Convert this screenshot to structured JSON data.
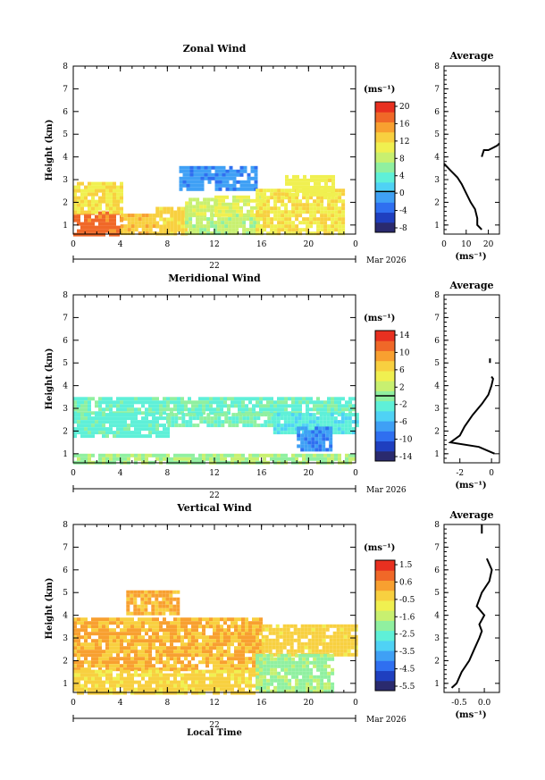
{
  "figure": {
    "xlabel": "Local Time",
    "date_day": "22",
    "date_month_year": "Mar 2026",
    "height_label": "Height (km)",
    "unit_label": "(ms⁻¹)"
  },
  "chart_data": [
    {
      "id": "zonal",
      "type": "heatmap",
      "title": "Zonal Wind",
      "xlabel": "",
      "ylabel": "Height (km)",
      "xlim": [
        0,
        24
      ],
      "ylim": [
        0.6,
        8
      ],
      "xticks": [
        "0",
        "4",
        "8",
        "12",
        "16",
        "20",
        "0"
      ],
      "yticks": [
        "1",
        "2",
        "3",
        "4",
        "5",
        "6",
        "7",
        "8"
      ],
      "colorbar": {
        "ticks": [
          "20",
          "16",
          "12",
          "8",
          "4",
          "0",
          "-4",
          "-8"
        ],
        "vmin": -10,
        "vmax": 22,
        "zero_line": 0
      },
      "regions": [
        {
          "x": [
            0,
            4
          ],
          "y": [
            0.6,
            1.6
          ],
          "value": 18
        },
        {
          "x": [
            0,
            4
          ],
          "y": [
            1.6,
            2.9
          ],
          "value": 12
        },
        {
          "x": [
            4,
            7
          ],
          "y": [
            0.6,
            1.5
          ],
          "value": 14
        },
        {
          "x": [
            7,
            9.5
          ],
          "y": [
            0.6,
            1.8
          ],
          "value": 13
        },
        {
          "x": [
            9.5,
            16
          ],
          "y": [
            0.6,
            1.5
          ],
          "value": 8
        },
        {
          "x": [
            9.5,
            12
          ],
          "y": [
            1.5,
            2.2
          ],
          "value": 9
        },
        {
          "x": [
            12,
            16
          ],
          "y": [
            1.5,
            2.3
          ],
          "value": 10
        },
        {
          "x": [
            9,
            15.5
          ],
          "y": [
            2.5,
            3.6
          ],
          "value": -2
        },
        {
          "x": [
            15.5,
            23
          ],
          "y": [
            0.6,
            2.6
          ],
          "value": 12
        },
        {
          "x": [
            18,
            22
          ],
          "y": [
            2.3,
            3.2
          ],
          "value": 11
        }
      ],
      "profile": {
        "title": "Average",
        "xlabel": "(ms⁻¹)",
        "xlim": [
          0,
          25
        ],
        "xticks": [
          "0",
          "10",
          "20"
        ],
        "x": [
          17,
          15,
          15,
          14,
          12,
          10,
          8,
          6,
          3,
          1,
          0
        ],
        "y": [
          0.8,
          1.0,
          1.3,
          1.7,
          2.0,
          2.4,
          2.8,
          3.1,
          3.4,
          3.6,
          3.7
        ],
        "x2": [
          17,
          18,
          20,
          22,
          24,
          25
        ],
        "y2": [
          4.0,
          4.3,
          4.3,
          4.4,
          4.5,
          4.6
        ]
      }
    },
    {
      "id": "meridional",
      "type": "heatmap",
      "title": "Meridional Wind",
      "xlabel": "",
      "ylabel": "Height (km)",
      "xlim": [
        0,
        24
      ],
      "ylim": [
        0.6,
        8
      ],
      "xticks": [
        "0",
        "4",
        "8",
        "12",
        "16",
        "20",
        "0"
      ],
      "yticks": [
        "1",
        "2",
        "3",
        "4",
        "5",
        "6",
        "7",
        "8"
      ],
      "colorbar": {
        "ticks": [
          "14",
          "10",
          "6",
          "2",
          "-2",
          "-6",
          "-10",
          "-14"
        ],
        "vmin": -16,
        "vmax": 16,
        "zero_line": 0
      },
      "regions": [
        {
          "x": [
            0,
            24
          ],
          "y": [
            2.8,
            3.5
          ],
          "value": -1.5
        },
        {
          "x": [
            0,
            8
          ],
          "y": [
            1.8,
            2.8
          ],
          "value": -2
        },
        {
          "x": [
            8,
            17
          ],
          "y": [
            2.2,
            2.8
          ],
          "value": -1
        },
        {
          "x": [
            17,
            24
          ],
          "y": [
            2.0,
            2.8
          ],
          "value": -3
        },
        {
          "x": [
            19,
            22
          ],
          "y": [
            1.2,
            2.2
          ],
          "value": -8
        },
        {
          "x": [
            0,
            24
          ],
          "y": [
            0.6,
            1.0
          ],
          "value": 1
        }
      ],
      "profile": {
        "title": "Average",
        "xlabel": "(ms⁻¹)",
        "xlim": [
          -3,
          0.5
        ],
        "xticks": [
          "-2",
          "0"
        ],
        "x": [
          0.2,
          -0.8,
          -2.6,
          -2.0,
          -1.7,
          -1.2,
          -0.6,
          -0.2,
          0.0,
          0.1,
          0.0
        ],
        "y": [
          1.0,
          1.3,
          1.5,
          1.8,
          2.2,
          2.7,
          3.2,
          3.6,
          4.0,
          4.3,
          4.4
        ],
        "x2": [
          -0.1,
          -0.1
        ],
        "y2": [
          5.0,
          5.2
        ]
      }
    },
    {
      "id": "vertical",
      "type": "heatmap",
      "title": "Vertical Wind",
      "xlabel": "Local Time",
      "ylabel": "Height (km)",
      "xlim": [
        0,
        24
      ],
      "ylim": [
        0.6,
        8
      ],
      "xticks": [
        "0",
        "4",
        "8",
        "12",
        "16",
        "20",
        "0"
      ],
      "yticks": [
        "1",
        "2",
        "3",
        "4",
        "5",
        "6",
        "7",
        "8"
      ],
      "colorbar": {
        "ticks": [
          "1.5",
          "0.6",
          "-0.5",
          "-1.6",
          "-2.5",
          "-3.5",
          "-4.5",
          "-5.5"
        ],
        "vmin": -6,
        "vmax": 2,
        "zero_line": null
      },
      "regions": [
        {
          "x": [
            0,
            16
          ],
          "y": [
            1.6,
            3.9
          ],
          "value": 0.2
        },
        {
          "x": [
            0,
            16
          ],
          "y": [
            0.6,
            1.6
          ],
          "value": -0.3
        },
        {
          "x": [
            16,
            24
          ],
          "y": [
            2.2,
            3.6
          ],
          "value": -0.2
        },
        {
          "x": [
            15.5,
            22
          ],
          "y": [
            0.6,
            2.3
          ],
          "value": -1.8
        },
        {
          "x": [
            4.5,
            9
          ],
          "y": [
            4.0,
            5.1
          ],
          "value": 0.3
        }
      ],
      "profile": {
        "title": "Average",
        "xlabel": "(ms⁻¹)",
        "xlim": [
          -0.8,
          0.3
        ],
        "xticks": [
          "-0.5",
          "0.0"
        ],
        "x": [
          -0.65,
          -0.55,
          -0.45,
          -0.3,
          -0.2,
          -0.1,
          -0.05,
          -0.1,
          0.0,
          -0.15,
          -0.05,
          0.1,
          0.15,
          0.05
        ],
        "y": [
          0.8,
          1.0,
          1.5,
          2.0,
          2.5,
          3.0,
          3.3,
          3.6,
          4.0,
          4.4,
          5.0,
          5.5,
          6.0,
          6.5
        ],
        "x2": [
          -0.05,
          -0.05
        ],
        "y2": [
          7.6,
          8.0
        ]
      }
    }
  ]
}
